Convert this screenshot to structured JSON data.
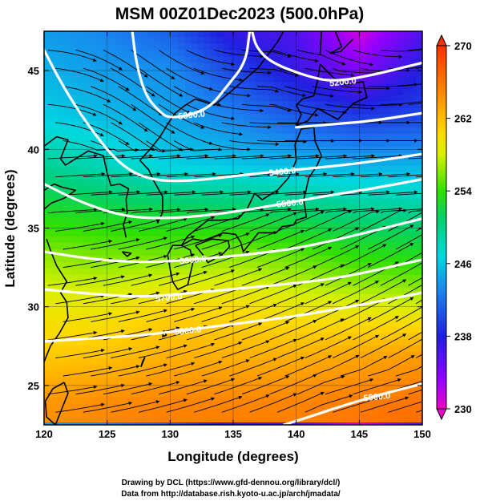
{
  "chart_data": {
    "type": "heatmap",
    "title": "MSM 00Z01Dec2023 (500.0hPa)",
    "xlabel": "Longitude (degrees)",
    "ylabel": "Latitude  (degrees)",
    "xlim": [
      120,
      150
    ],
    "ylim": [
      22.5,
      47.5
    ],
    "x_ticks": [
      120,
      125,
      130,
      135,
      140,
      145,
      150
    ],
    "y_ticks": [
      25,
      30,
      35,
      40,
      45
    ],
    "colorbar": {
      "min": 230,
      "max": 270,
      "ticks": [
        230,
        238,
        246,
        254,
        262,
        270
      ]
    },
    "temperature_field": {
      "lon_nodes": [
        120,
        125,
        130,
        135,
        140,
        145,
        150
      ],
      "lat_nodes": [
        47.5,
        45,
        42,
        39,
        36,
        33,
        30,
        27,
        24,
        22.5
      ],
      "values": [
        [
          244.0,
          243.0,
          241.0,
          237.0,
          236.0,
          231.0,
          236.0
        ],
        [
          245.0,
          244.0,
          243.5,
          240.0,
          237.0,
          234.0,
          238.0
        ],
        [
          246.5,
          245.5,
          244.5,
          243.0,
          241.0,
          239.5,
          240.0
        ],
        [
          249.5,
          248.0,
          246.5,
          246.0,
          245.5,
          245.0,
          245.0
        ],
        [
          253.0,
          252.5,
          252.0,
          251.5,
          251.0,
          250.0,
          249.5
        ],
        [
          256.5,
          256.0,
          256.0,
          256.5,
          255.5,
          254.0,
          253.5
        ],
        [
          259.0,
          259.0,
          260.5,
          260.0,
          259.0,
          258.5,
          258.0
        ],
        [
          261.0,
          261.5,
          262.5,
          262.5,
          262.5,
          263.0,
          263.5
        ],
        [
          264.0,
          264.5,
          265.0,
          265.0,
          265.0,
          265.5,
          266.0
        ],
        [
          264.5,
          265.0,
          265.5,
          265.5,
          265.5,
          266.0,
          266.5
        ]
      ]
    },
    "height_contours": [
      {
        "label": "5200.0",
        "points": [
          [
            136.5,
            47.5
          ],
          [
            136.8,
            46.5
          ],
          [
            138.0,
            45.5
          ],
          [
            141.0,
            44.6
          ],
          [
            143.0,
            44.3
          ],
          [
            146.0,
            44.7
          ],
          [
            150.0,
            45.5
          ]
        ]
      },
      {
        "label": "5300.0",
        "points": [
          [
            127.0,
            47.5
          ],
          [
            127.3,
            45.5
          ],
          [
            128.0,
            43.5
          ],
          [
            129.0,
            42.5
          ],
          [
            130.0,
            41.9
          ],
          [
            133.0,
            42.5
          ],
          [
            134.5,
            44.0
          ],
          [
            136.0,
            45.5
          ],
          [
            136.3,
            47.5
          ]
        ]
      },
      {
        "label": "5300.0",
        "points": [
          [
            140.0,
            41.4
          ],
          [
            143.0,
            41.6
          ],
          [
            146.0,
            41.8
          ],
          [
            150.0,
            42.3
          ]
        ]
      },
      {
        "label": "5400.0",
        "points": [
          [
            120.0,
            46.3
          ],
          [
            121.5,
            44.0
          ],
          [
            123.5,
            41.5
          ],
          [
            126.0,
            39.0
          ],
          [
            128.5,
            38.0
          ],
          [
            132.0,
            38.0
          ],
          [
            136.0,
            38.4
          ],
          [
            140.0,
            38.7
          ],
          [
            145.0,
            39.1
          ],
          [
            150.0,
            39.7
          ]
        ]
      },
      {
        "label": "5500.0",
        "points": [
          [
            120.0,
            37.8
          ],
          [
            123.0,
            36.6
          ],
          [
            126.5,
            35.7
          ],
          [
            130.0,
            35.6
          ],
          [
            134.0,
            35.9
          ],
          [
            138.0,
            36.4
          ],
          [
            142.0,
            37.0
          ],
          [
            146.0,
            37.5
          ],
          [
            150.0,
            38.1
          ]
        ]
      },
      {
        "label": "5600.0",
        "points": [
          [
            120.0,
            33.5
          ],
          [
            124.0,
            33.0
          ],
          [
            128.0,
            32.8
          ],
          [
            132.0,
            33.0
          ],
          [
            136.0,
            33.3
          ],
          [
            140.0,
            33.7
          ],
          [
            144.0,
            34.4
          ],
          [
            150.0,
            35.6
          ]
        ]
      },
      {
        "label": "5700.0",
        "points": [
          [
            120.0,
            31.1
          ],
          [
            124.0,
            30.8
          ],
          [
            128.0,
            30.6
          ],
          [
            132.0,
            30.9
          ],
          [
            136.0,
            31.2
          ],
          [
            140.0,
            31.5
          ],
          [
            144.0,
            31.9
          ],
          [
            150.0,
            33.0
          ]
        ]
      },
      {
        "label": "5800.0",
        "points": [
          [
            120.0,
            27.8
          ],
          [
            124.0,
            28.0
          ],
          [
            128.0,
            28.2
          ],
          [
            132.0,
            28.6
          ],
          [
            136.0,
            29.0
          ],
          [
            140.0,
            29.4
          ],
          [
            145.0,
            30.1
          ],
          [
            150.0,
            30.9
          ]
        ]
      },
      {
        "label": "5900.0",
        "points": [
          [
            139.0,
            22.5
          ],
          [
            141.0,
            23.0
          ],
          [
            144.0,
            23.8
          ],
          [
            147.0,
            24.5
          ],
          [
            150.0,
            25.1
          ]
        ]
      }
    ],
    "contour_labels": [
      {
        "text": "5200.0",
        "lon": 143.7,
        "lat": 44.3
      },
      {
        "text": "5300.0",
        "lon": 131.7,
        "lat": 42.2
      },
      {
        "text": "5400.0",
        "lon": 138.9,
        "lat": 38.6
      },
      {
        "text": "5500.0",
        "lon": 139.5,
        "lat": 36.6
      },
      {
        "text": "5600.0",
        "lon": 131.8,
        "lat": 33.0
      },
      {
        "text": "5700.0",
        "lon": 129.9,
        "lat": 30.6
      },
      {
        "text": "5800.0",
        "lon": 131.4,
        "lat": 28.5
      },
      {
        "text": "5900.0",
        "lon": 146.4,
        "lat": 24.3
      }
    ],
    "grid": true
  },
  "footer": {
    "line1": "Drawing by DCL (https://www.gfd-dennou.org/library/dcl/)",
    "line2": "Data from http://database.rish.kyoto-u.ac.jp/arch/jmadata/"
  }
}
